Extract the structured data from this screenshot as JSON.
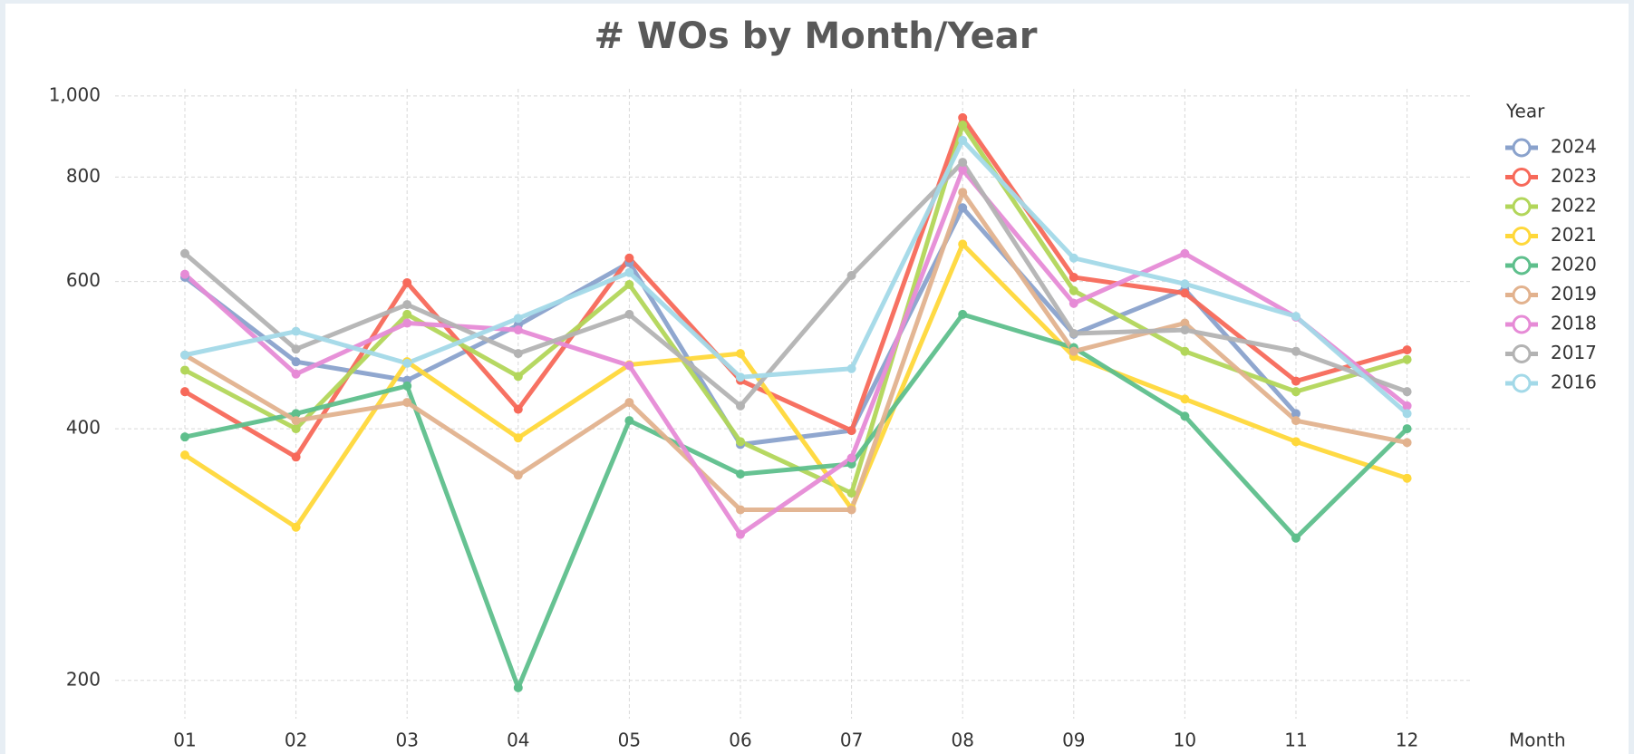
{
  "chart_data": {
    "type": "line",
    "title": "# WOs by Month/Year",
    "x_label": "Month",
    "legend_title": "Year",
    "categories": [
      "01",
      "02",
      "03",
      "04",
      "05",
      "06",
      "07",
      "08",
      "09",
      "10",
      "11",
      "12"
    ],
    "ylim": [
      180,
      1020
    ],
    "log_scale": true,
    "grid": true,
    "legend": "right",
    "yticks": [
      200,
      400,
      600,
      800,
      {
        "value": 1000,
        "label": "1,000"
      }
    ],
    "series": [
      {
        "name": "2024",
        "color": "#8aa2cc",
        "values": [
          607,
          481,
          457,
          532,
          632,
          383,
          398,
          735,
          519,
          587,
          417,
          null
        ]
      },
      {
        "name": "2023",
        "color": "#f7695a",
        "values": [
          443,
          370,
          598,
          422,
          640,
          457,
          398,
          942,
          607,
          581,
          456,
          497
        ]
      },
      {
        "name": "2022",
        "color": "#b2d65a",
        "values": [
          470,
          400,
          548,
          462,
          595,
          386,
          335,
          923,
          585,
          495,
          443,
          484
        ]
      },
      {
        "name": "2021",
        "color": "#ffd83a",
        "values": [
          372,
          305,
          481,
          390,
          477,
          492,
          321,
          665,
          488,
          434,
          386,
          349
        ]
      },
      {
        "name": "2020",
        "color": "#5ebf8c",
        "values": [
          391,
          417,
          450,
          196,
          409,
          353,
          363,
          548,
          500,
          414,
          296,
          400
        ]
      },
      {
        "name": "2019",
        "color": "#e2b28e",
        "values": [
          490,
          409,
          430,
          352,
          430,
          320,
          320,
          767,
          495,
          535,
          409,
          385
        ]
      },
      {
        "name": "2018",
        "color": "#e68bd6",
        "values": [
          612,
          465,
          535,
          525,
          476,
          299,
          369,
          816,
          565,
          648,
          544,
          426
        ]
      },
      {
        "name": "2017",
        "color": "#b3b3b3",
        "values": [
          648,
          498,
          563,
          492,
          548,
          426,
          610,
          833,
          520,
          525,
          495,
          443
        ]
      },
      {
        "name": "2016",
        "color": "#a3d9e8",
        "values": [
          490,
          523,
          479,
          542,
          615,
          461,
          472,
          885,
          640,
          596,
          545,
          417
        ]
      }
    ]
  }
}
